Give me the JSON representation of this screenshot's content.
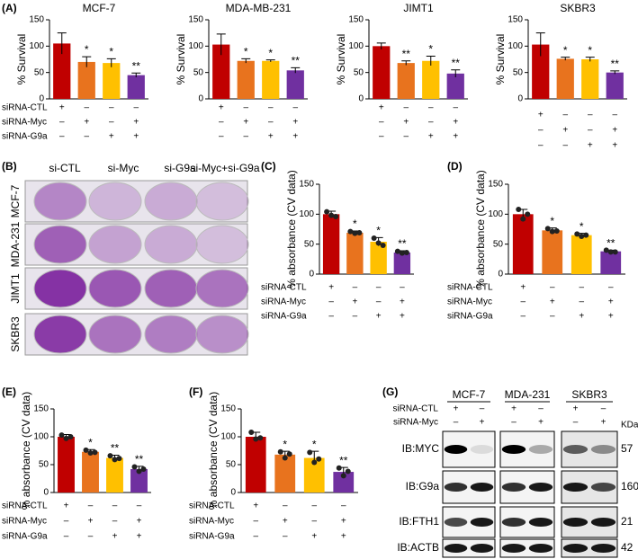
{
  "chart_data": [
    {
      "type": "bar",
      "panel": "(A)",
      "title": "MCF-7",
      "ylabel": "% Survival",
      "ylim": [
        0,
        150
      ],
      "yticks": [
        0,
        50,
        100,
        150
      ],
      "colors": [
        "#c00000",
        "#e8731e",
        "#ffc000",
        "#7030a0"
      ],
      "values": [
        105,
        70,
        68,
        45
      ],
      "errors": [
        20,
        10,
        8,
        4
      ],
      "annotations": [
        null,
        "*",
        "*",
        "**"
      ],
      "conditions": [
        {
          "label": "siRNA-CTL",
          "marks": [
            "+",
            "–",
            "–",
            "–"
          ]
        },
        {
          "label": "siRNA-Myc",
          "marks": [
            "–",
            "+",
            "–",
            "+"
          ]
        },
        {
          "label": "siRNA-G9a",
          "marks": [
            "–",
            "–",
            "+",
            "+"
          ]
        }
      ]
    },
    {
      "type": "bar",
      "title": "MDA-MB-231",
      "ylabel": "% Survival",
      "ylim": [
        0,
        150
      ],
      "yticks": [
        0,
        50,
        100,
        150
      ],
      "colors": [
        "#c00000",
        "#e8731e",
        "#ffc000",
        "#7030a0"
      ],
      "values": [
        103,
        72,
        72,
        54
      ],
      "errors": [
        20,
        4,
        2,
        5
      ],
      "annotations": [
        null,
        "*",
        "*",
        "**"
      ],
      "conditions": [
        {
          "marks": [
            "+",
            "–",
            "–",
            "–"
          ]
        },
        {
          "marks": [
            "–",
            "+",
            "–",
            "+"
          ]
        },
        {
          "marks": [
            "–",
            "–",
            "+",
            "+"
          ]
        }
      ]
    },
    {
      "type": "bar",
      "title": "JIMT1",
      "ylabel": "% Survival",
      "ylim": [
        0,
        150
      ],
      "yticks": [
        0,
        50,
        100,
        150
      ],
      "colors": [
        "#c00000",
        "#e8731e",
        "#ffc000",
        "#7030a0"
      ],
      "values": [
        100,
        68,
        72,
        48
      ],
      "errors": [
        6,
        4,
        9,
        7
      ],
      "annotations": [
        null,
        "**",
        "*",
        "**"
      ],
      "conditions": [
        {
          "marks": [
            "+",
            "–",
            "–",
            "–"
          ]
        },
        {
          "marks": [
            "–",
            "+",
            "–",
            "+"
          ]
        },
        {
          "marks": [
            "–",
            "–",
            "+",
            "+"
          ]
        }
      ]
    },
    {
      "type": "bar",
      "title": "SKBR3",
      "ylabel": "% Survival",
      "ylim": [
        0,
        150
      ],
      "yticks": [
        0,
        50,
        100,
        150
      ],
      "colors": [
        "#c00000",
        "#e8731e",
        "#ffc000",
        "#7030a0"
      ],
      "values": [
        103,
        76,
        75,
        50
      ],
      "errors": [
        22,
        3,
        4,
        3
      ],
      "annotations": [
        null,
        "*",
        "*",
        "**"
      ],
      "conditions": [
        {
          "marks": [
            "+",
            "–",
            "–",
            "–"
          ]
        },
        {
          "marks": [
            "–",
            "+",
            "–",
            "+"
          ]
        },
        {
          "marks": [
            "–",
            "–",
            "+",
            "+"
          ]
        }
      ]
    },
    {
      "type": "bar",
      "panel": "(C)",
      "ylabel": "% absorbance (CV data)",
      "ylim": [
        0,
        150
      ],
      "yticks": [
        0,
        50,
        100,
        150
      ],
      "colors": [
        "#c00000",
        "#e8731e",
        "#ffc000",
        "#7030a0"
      ],
      "values": [
        100,
        69,
        54,
        36
      ],
      "errors": [
        5,
        3,
        7,
        3
      ],
      "points": [
        [
          104,
          98,
          96
        ],
        [
          71,
          68,
          69
        ],
        [
          60,
          52,
          48
        ],
        [
          38,
          35,
          36
        ]
      ],
      "annotations": [
        null,
        "*",
        "*",
        "**"
      ],
      "conditions": [
        {
          "label": "siRNA-CTL",
          "marks": [
            "+",
            "–",
            "–",
            "–"
          ]
        },
        {
          "label": "siRNA-Myc",
          "marks": [
            "–",
            "+",
            "–",
            "+"
          ]
        },
        {
          "label": "siRNA-G9a",
          "marks": [
            "–",
            "–",
            "+",
            "+"
          ]
        }
      ]
    },
    {
      "type": "bar",
      "panel": "(D)",
      "ylabel": "% absorbance (CV data)",
      "ylim": [
        0,
        150
      ],
      "yticks": [
        0,
        50,
        100,
        150
      ],
      "colors": [
        "#c00000",
        "#e8731e",
        "#ffc000",
        "#7030a0"
      ],
      "values": [
        100,
        73,
        65,
        38
      ],
      "errors": [
        8,
        4,
        3,
        2
      ],
      "points": [
        [
          108,
          92,
          100
        ],
        [
          76,
          71,
          72
        ],
        [
          67,
          63,
          65
        ],
        [
          40,
          37,
          37
        ]
      ],
      "annotations": [
        null,
        "*",
        "*",
        "**"
      ],
      "conditions": [
        {
          "label": "siRNA-CTL",
          "marks": [
            "+",
            "–",
            "–",
            "–"
          ]
        },
        {
          "label": "siRNA-Myc",
          "marks": [
            "–",
            "+",
            "–",
            "+"
          ]
        },
        {
          "label": "siRNA-G9a",
          "marks": [
            "–",
            "–",
            "+",
            "+"
          ]
        }
      ]
    },
    {
      "type": "bar",
      "panel": "(E)",
      "ylabel": "% absorbance (CV data)",
      "ylim": [
        0,
        150
      ],
      "yticks": [
        0,
        50,
        100,
        150
      ],
      "colors": [
        "#c00000",
        "#e8731e",
        "#ffc000",
        "#7030a0"
      ],
      "values": [
        100,
        73,
        62,
        42
      ],
      "errors": [
        4,
        4,
        5,
        5
      ],
      "points": [
        [
          103,
          97,
          100
        ],
        [
          76,
          71,
          72
        ],
        [
          66,
          59,
          61
        ],
        [
          46,
          38,
          42
        ]
      ],
      "annotations": [
        null,
        "*",
        "**",
        "**"
      ],
      "conditions": [
        {
          "label": "siRNA-CTL",
          "marks": [
            "+",
            "–",
            "–",
            "–"
          ]
        },
        {
          "label": "siRNA-Myc",
          "marks": [
            "–",
            "+",
            "–",
            "+"
          ]
        },
        {
          "label": "siRNA-G9a",
          "marks": [
            "–",
            "–",
            "+",
            "+"
          ]
        }
      ]
    },
    {
      "type": "bar",
      "panel": "(F)",
      "ylabel": "% absorbance (CV data)",
      "ylim": [
        0,
        150
      ],
      "yticks": [
        0,
        50,
        100,
        150
      ],
      "colors": [
        "#c00000",
        "#e8731e",
        "#ffc000",
        "#7030a0"
      ],
      "values": [
        100,
        68,
        62,
        37
      ],
      "errors": [
        8,
        6,
        12,
        8
      ],
      "points": [
        [
          108,
          96,
          98
        ],
        [
          73,
          62,
          69
        ],
        [
          72,
          54,
          60
        ],
        [
          44,
          30,
          38
        ]
      ],
      "annotations": [
        null,
        "*",
        "*",
        "**"
      ],
      "conditions": [
        {
          "label": "siRNA-CTL",
          "marks": [
            "+",
            "–",
            "–",
            "–"
          ]
        },
        {
          "label": "siRNA-Myc",
          "marks": [
            "–",
            "+",
            "–",
            "+"
          ]
        },
        {
          "label": "siRNA-G9a",
          "marks": [
            "–",
            "–",
            "+",
            "+"
          ]
        }
      ]
    }
  ],
  "plates": {
    "panel": "(B)",
    "columns": [
      "si-CTL",
      "si-Myc",
      "si-G9a",
      "si-Myc+si-G9a"
    ],
    "rows": [
      "MCF-7",
      "MDA-231",
      "JIMT1",
      "SKBR3"
    ]
  },
  "blot": {
    "panel": "(G)",
    "cell_lines": [
      "MCF-7",
      "MDA-231",
      "SKBR3"
    ],
    "kda_label": "KDa",
    "conditions": [
      {
        "label": "siRNA-CTL",
        "marks": [
          "+",
          "–"
        ]
      },
      {
        "label": "siRNA-Myc",
        "marks": [
          "–",
          "+"
        ]
      }
    ],
    "proteins": [
      {
        "label": "IB:MYC",
        "kda": 57
      },
      {
        "label": "IB:G9a",
        "kda": 160
      },
      {
        "label": "IB:FTH1",
        "kda": 21
      },
      {
        "label": "IB:ACTB",
        "kda": 42
      }
    ]
  }
}
